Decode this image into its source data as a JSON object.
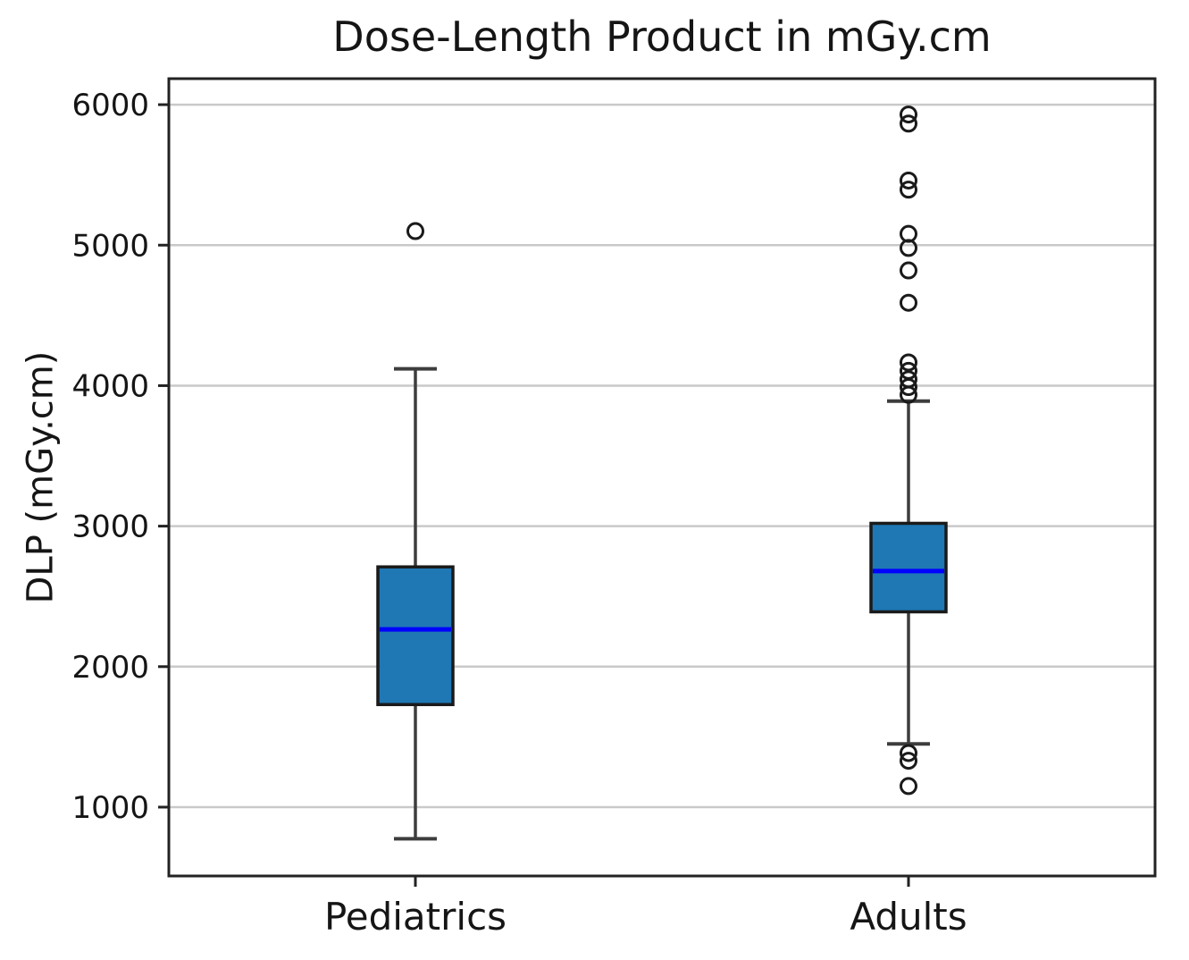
{
  "chart_data": {
    "type": "boxplot",
    "title": "Dose-Length Product in mGy.cm",
    "ylabel": "DLP (mGy.cm)",
    "xlabel": "",
    "categories": [
      "Pediatrics",
      "Adults"
    ],
    "yticks": [
      1000,
      2000,
      3000,
      4000,
      5000,
      6000
    ],
    "ylim": [
      510,
      6185
    ],
    "grid": "horizontal-only",
    "legend": "none",
    "colors": {
      "box_fill": "#1f77b4",
      "box_edge": "#1a1a1a",
      "median_line": "#0000ff",
      "whisker": "#3d3d3d",
      "outlier_edge": "#1a1a1a",
      "gridline": "#c9c9c9",
      "spine": "#222222",
      "background": "#ffffff"
    },
    "series": [
      {
        "name": "Pediatrics",
        "whisker_low": 775,
        "q1": 1730,
        "median": 2265,
        "q3": 2710,
        "whisker_high": 4120,
        "outliers": [
          5100
        ]
      },
      {
        "name": "Adults",
        "whisker_low": 1450,
        "q1": 2390,
        "median": 2680,
        "q3": 3020,
        "whisker_high": 3890,
        "outliers": [
          5930,
          5865,
          5460,
          5395,
          5080,
          4980,
          4820,
          4590,
          4165,
          4105,
          4045,
          3990,
          3935,
          1385,
          1330,
          1150
        ]
      }
    ]
  }
}
